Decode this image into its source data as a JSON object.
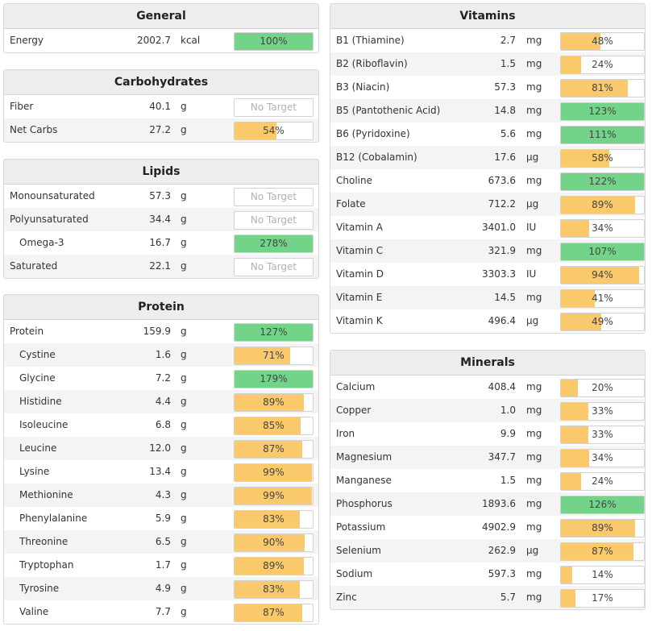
{
  "general": {
    "title": "General",
    "rows": [
      {
        "name": "Energy",
        "value": "2002.7",
        "unit": "kcal",
        "pct": "100%",
        "fill": 100,
        "color": "green"
      }
    ]
  },
  "carbohydrates": {
    "title": "Carbohydrates",
    "rows": [
      {
        "name": "Fiber",
        "value": "40.1",
        "unit": "g",
        "pct": "No Target",
        "fill": 0,
        "color": "none"
      },
      {
        "name": "Net Carbs",
        "value": "27.2",
        "unit": "g",
        "pct": "54%",
        "fill": 54,
        "color": "orange"
      }
    ]
  },
  "lipids": {
    "title": "Lipids",
    "rows": [
      {
        "name": "Monounsaturated",
        "value": "57.3",
        "unit": "g",
        "pct": "No Target",
        "fill": 0,
        "color": "none"
      },
      {
        "name": "Polyunsaturated",
        "value": "34.4",
        "unit": "g",
        "pct": "No Target",
        "fill": 0,
        "color": "none"
      },
      {
        "name": "Omega-3",
        "value": "16.7",
        "unit": "g",
        "pct": "278%",
        "fill": 100,
        "color": "green",
        "indent": true
      },
      {
        "name": "Saturated",
        "value": "22.1",
        "unit": "g",
        "pct": "No Target",
        "fill": 0,
        "color": "none"
      }
    ]
  },
  "protein": {
    "title": "Protein",
    "rows": [
      {
        "name": "Protein",
        "value": "159.9",
        "unit": "g",
        "pct": "127%",
        "fill": 100,
        "color": "green"
      },
      {
        "name": "Cystine",
        "value": "1.6",
        "unit": "g",
        "pct": "71%",
        "fill": 71,
        "color": "orange",
        "indent": true
      },
      {
        "name": "Glycine",
        "value": "7.2",
        "unit": "g",
        "pct": "179%",
        "fill": 100,
        "color": "green",
        "indent": true
      },
      {
        "name": "Histidine",
        "value": "4.4",
        "unit": "g",
        "pct": "89%",
        "fill": 89,
        "color": "orange",
        "indent": true
      },
      {
        "name": "Isoleucine",
        "value": "6.8",
        "unit": "g",
        "pct": "85%",
        "fill": 85,
        "color": "orange",
        "indent": true
      },
      {
        "name": "Leucine",
        "value": "12.0",
        "unit": "g",
        "pct": "87%",
        "fill": 87,
        "color": "orange",
        "indent": true
      },
      {
        "name": "Lysine",
        "value": "13.4",
        "unit": "g",
        "pct": "99%",
        "fill": 99,
        "color": "orange",
        "indent": true
      },
      {
        "name": "Methionine",
        "value": "4.3",
        "unit": "g",
        "pct": "99%",
        "fill": 99,
        "color": "orange",
        "indent": true
      },
      {
        "name": "Phenylalanine",
        "value": "5.9",
        "unit": "g",
        "pct": "83%",
        "fill": 83,
        "color": "orange",
        "indent": true
      },
      {
        "name": "Threonine",
        "value": "6.5",
        "unit": "g",
        "pct": "90%",
        "fill": 90,
        "color": "orange",
        "indent": true
      },
      {
        "name": "Tryptophan",
        "value": "1.7",
        "unit": "g",
        "pct": "89%",
        "fill": 89,
        "color": "orange",
        "indent": true
      },
      {
        "name": "Tyrosine",
        "value": "4.9",
        "unit": "g",
        "pct": "83%",
        "fill": 83,
        "color": "orange",
        "indent": true
      },
      {
        "name": "Valine",
        "value": "7.7",
        "unit": "g",
        "pct": "87%",
        "fill": 87,
        "color": "orange",
        "indent": true
      }
    ]
  },
  "vitamins": {
    "title": "Vitamins",
    "rows": [
      {
        "name": "B1 (Thiamine)",
        "value": "2.7",
        "unit": "mg",
        "pct": "48%",
        "fill": 48,
        "color": "orange"
      },
      {
        "name": "B2 (Riboflavin)",
        "value": "1.5",
        "unit": "mg",
        "pct": "24%",
        "fill": 24,
        "color": "orange"
      },
      {
        "name": "B3 (Niacin)",
        "value": "57.3",
        "unit": "mg",
        "pct": "81%",
        "fill": 81,
        "color": "orange"
      },
      {
        "name": "B5 (Pantothenic Acid)",
        "value": "14.8",
        "unit": "mg",
        "pct": "123%",
        "fill": 100,
        "color": "green"
      },
      {
        "name": "B6 (Pyridoxine)",
        "value": "5.6",
        "unit": "mg",
        "pct": "111%",
        "fill": 100,
        "color": "green"
      },
      {
        "name": "B12 (Cobalamin)",
        "value": "17.6",
        "unit": "µg",
        "pct": "58%",
        "fill": 58,
        "color": "orange"
      },
      {
        "name": "Choline",
        "value": "673.6",
        "unit": "mg",
        "pct": "122%",
        "fill": 100,
        "color": "green"
      },
      {
        "name": "Folate",
        "value": "712.2",
        "unit": "µg",
        "pct": "89%",
        "fill": 89,
        "color": "orange"
      },
      {
        "name": "Vitamin A",
        "value": "3401.0",
        "unit": "IU",
        "pct": "34%",
        "fill": 34,
        "color": "orange"
      },
      {
        "name": "Vitamin C",
        "value": "321.9",
        "unit": "mg",
        "pct": "107%",
        "fill": 100,
        "color": "green"
      },
      {
        "name": "Vitamin D",
        "value": "3303.3",
        "unit": "IU",
        "pct": "94%",
        "fill": 94,
        "color": "orange"
      },
      {
        "name": "Vitamin E",
        "value": "14.5",
        "unit": "mg",
        "pct": "41%",
        "fill": 41,
        "color": "orange"
      },
      {
        "name": "Vitamin K",
        "value": "496.4",
        "unit": "µg",
        "pct": "49%",
        "fill": 49,
        "color": "orange"
      }
    ]
  },
  "minerals": {
    "title": "Minerals",
    "rows": [
      {
        "name": "Calcium",
        "value": "408.4",
        "unit": "mg",
        "pct": "20%",
        "fill": 20,
        "color": "orange"
      },
      {
        "name": "Copper",
        "value": "1.0",
        "unit": "mg",
        "pct": "33%",
        "fill": 33,
        "color": "orange"
      },
      {
        "name": "Iron",
        "value": "9.9",
        "unit": "mg",
        "pct": "33%",
        "fill": 33,
        "color": "orange"
      },
      {
        "name": "Magnesium",
        "value": "347.7",
        "unit": "mg",
        "pct": "34%",
        "fill": 34,
        "color": "orange"
      },
      {
        "name": "Manganese",
        "value": "1.5",
        "unit": "mg",
        "pct": "24%",
        "fill": 24,
        "color": "orange"
      },
      {
        "name": "Phosphorus",
        "value": "1893.6",
        "unit": "mg",
        "pct": "126%",
        "fill": 100,
        "color": "green"
      },
      {
        "name": "Potassium",
        "value": "4902.9",
        "unit": "mg",
        "pct": "89%",
        "fill": 89,
        "color": "orange"
      },
      {
        "name": "Selenium",
        "value": "262.9",
        "unit": "µg",
        "pct": "87%",
        "fill": 87,
        "color": "orange"
      },
      {
        "name": "Sodium",
        "value": "597.3",
        "unit": "mg",
        "pct": "14%",
        "fill": 14,
        "color": "orange"
      },
      {
        "name": "Zinc",
        "value": "5.7",
        "unit": "mg",
        "pct": "17%",
        "fill": 17,
        "color": "orange"
      }
    ]
  }
}
